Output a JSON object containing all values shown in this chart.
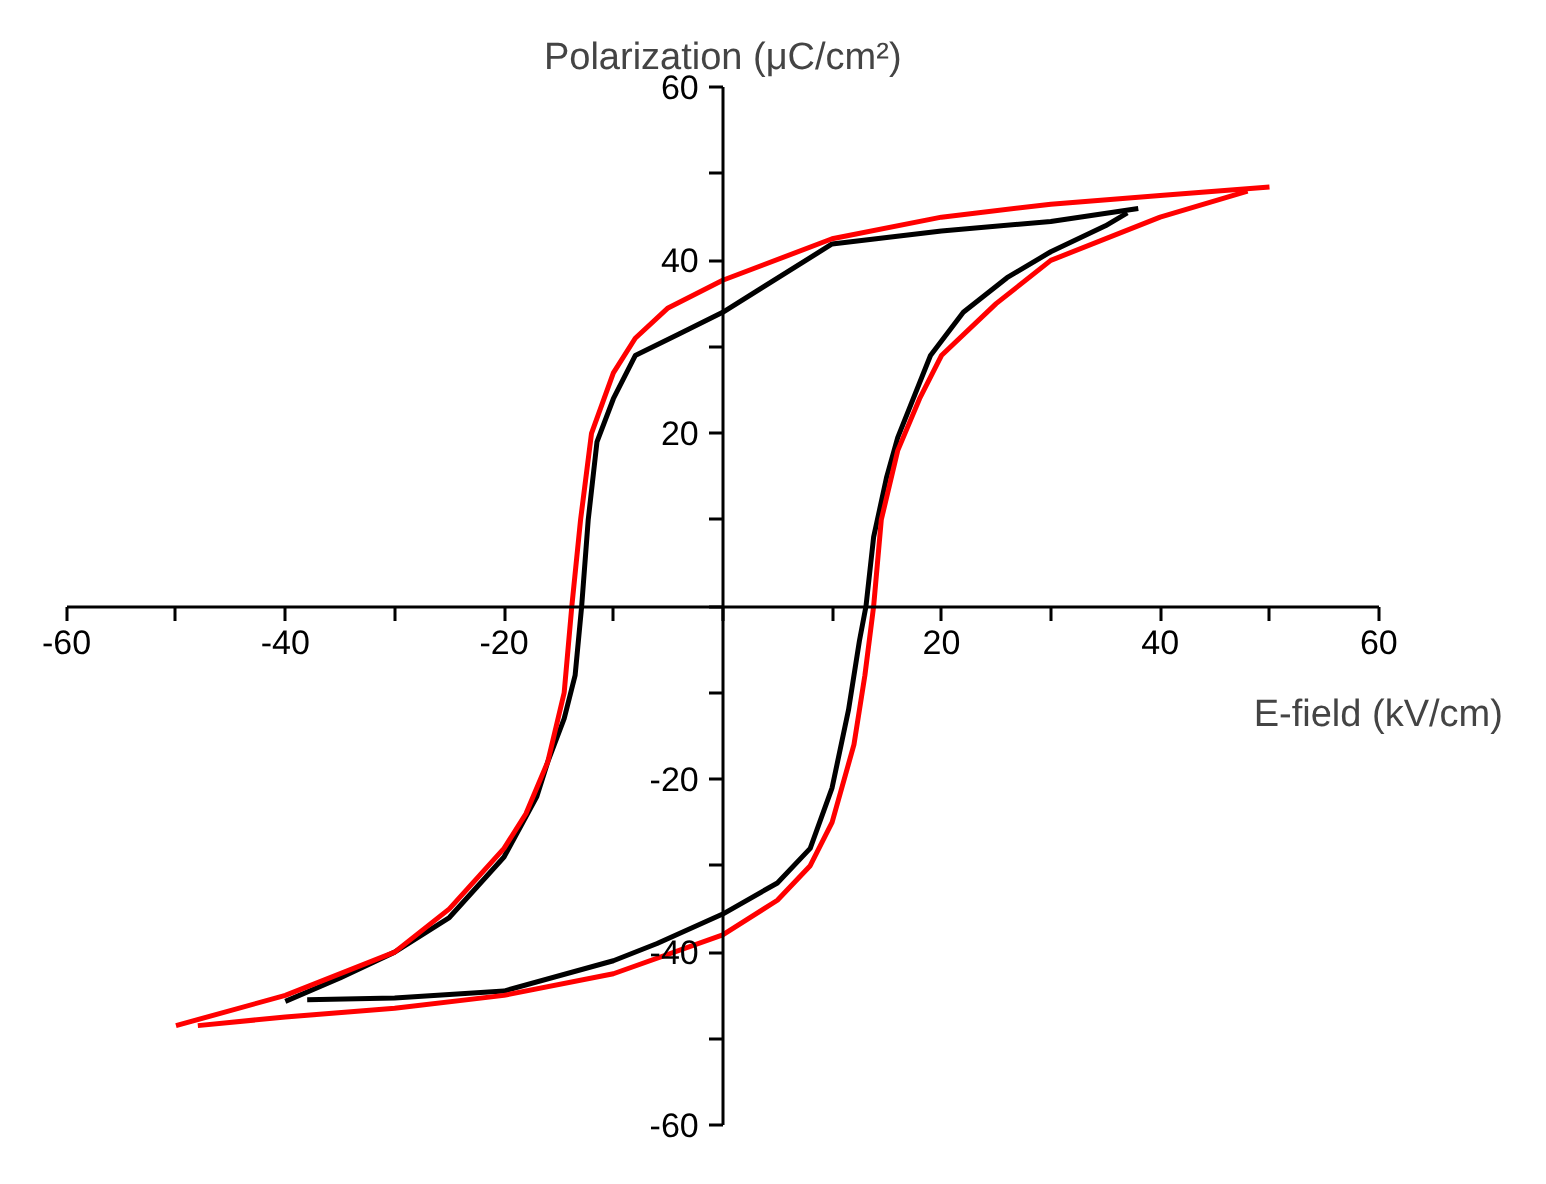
{
  "chart_data": {
    "type": "line",
    "xlabel": "E-field (kV/cm)",
    "ylabel": "Polarization (μC/cm²)",
    "xlim": [
      -60,
      60
    ],
    "ylim": [
      -60,
      60
    ],
    "xticks": [
      -60,
      {
        "value": -50,
        "label": null
      },
      -40,
      {
        "value": -30,
        "label": null
      },
      -20,
      {
        "value": -10,
        "label": null
      },
      {
        "value": 0,
        "label": null
      },
      {
        "value": 10,
        "label": null
      },
      20,
      {
        "value": 30,
        "label": null
      },
      40,
      {
        "value": 50,
        "label": null
      },
      60
    ],
    "yticks": [
      -60,
      {
        "value": -50,
        "label": null
      },
      -40,
      {
        "value": -30,
        "label": null
      },
      -20,
      {
        "value": -10,
        "label": null
      },
      {
        "value": 0,
        "label": null
      },
      {
        "value": 10,
        "label": null
      },
      20,
      {
        "value": 30,
        "label": null
      },
      40,
      {
        "value": 50,
        "label": null
      },
      60
    ],
    "grid": false,
    "marker": "none",
    "line_style": "solid",
    "series": [
      {
        "color": "#000000",
        "x": [
          -40,
          -35,
          -30,
          -25,
          -20,
          -17,
          -16,
          -14.5,
          -13.5,
          -12.9,
          -12.3,
          -11.5,
          -10,
          -8,
          -4,
          0,
          10,
          20,
          30,
          38
        ],
        "values": [
          -45.7,
          -43,
          -40,
          -36,
          -29,
          -22,
          -18,
          -13,
          -8,
          0,
          10,
          19,
          24,
          29,
          31.5,
          34,
          41.9,
          43.4,
          44.5,
          46
        ]
      },
      {
        "color": "#000000",
        "x": [
          -38,
          -30,
          -20,
          -10,
          -6,
          0,
          5,
          8,
          10,
          11.5,
          12.5,
          13.1,
          13.8,
          15,
          16,
          19,
          22,
          26,
          30,
          35,
          37
        ],
        "values": [
          -45.5,
          -45.3,
          -44.5,
          -41,
          -39,
          -35.6,
          -32,
          -28,
          -21,
          -12,
          -4,
          0,
          8,
          15,
          19.5,
          29,
          34,
          38,
          41,
          44,
          45.5
        ]
      },
      {
        "color": "#ff0000",
        "x": [
          -50,
          -40,
          -30,
          -25,
          -20,
          -18,
          -16,
          -14.5,
          -13.8,
          -13,
          -12,
          -10,
          -8,
          -5,
          0,
          10,
          20,
          30,
          40,
          50
        ],
        "values": [
          -48.5,
          -45,
          -40,
          -35,
          -28,
          -24,
          -18,
          -10,
          0,
          10,
          20,
          27,
          31,
          34.5,
          37.7,
          42.5,
          45,
          46.5,
          47.5,
          48.5
        ]
      },
      {
        "color": "#ff0000",
        "x": [
          -48,
          -40,
          -30,
          -20,
          -10,
          0,
          5,
          8,
          10,
          12,
          13,
          13.8,
          14.5,
          16,
          18,
          20,
          25,
          30,
          40,
          48
        ],
        "values": [
          -48.5,
          -47.5,
          -46.5,
          -45,
          -42.5,
          -38,
          -34,
          -30,
          -25,
          -16,
          -8,
          0,
          10,
          18,
          24,
          29,
          35,
          40,
          45,
          48
        ]
      }
    ]
  }
}
